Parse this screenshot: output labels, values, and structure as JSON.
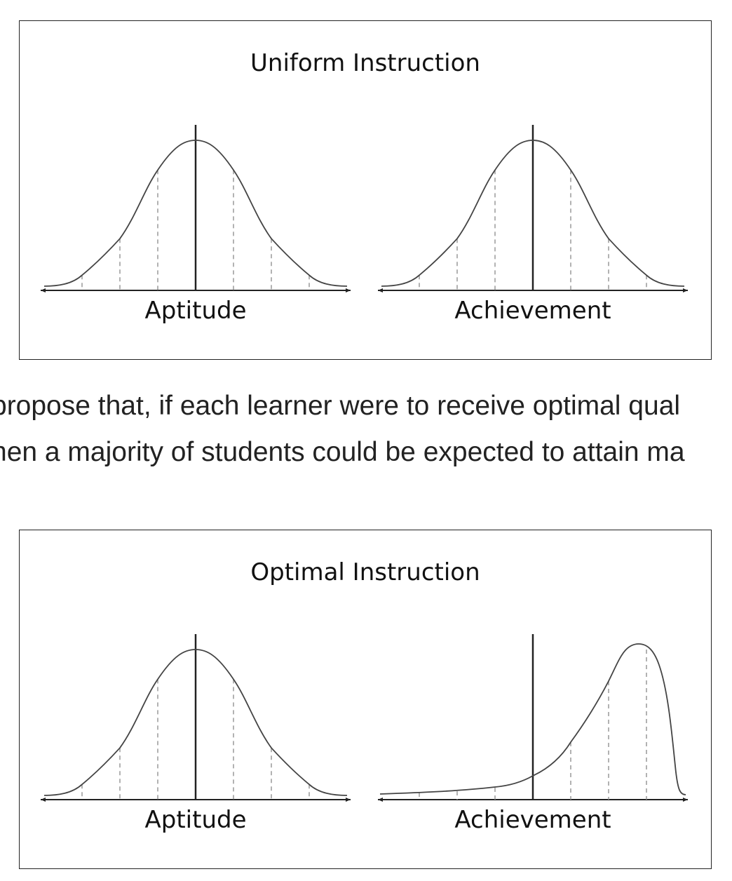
{
  "figures": {
    "top": {
      "title": "Uniform Instruction",
      "left_axis_label": "Aptitude",
      "right_axis_label": "Achievement",
      "left_curve": "normal-distribution",
      "right_curve": "normal-distribution"
    },
    "bottom": {
      "title": "Optimal Instruction",
      "left_axis_label": "Aptitude",
      "right_axis_label": "Achievement",
      "left_curve": "normal-distribution",
      "right_curve": "left-skewed-distribution"
    }
  },
  "paragraph": {
    "line1": "propose that, if each learner were to receive optimal qual",
    "line2": "hen a majority of students could be expected to attain ma"
  },
  "colors": {
    "curve": "#444444",
    "axis": "#222222",
    "dashed": "#999999"
  }
}
